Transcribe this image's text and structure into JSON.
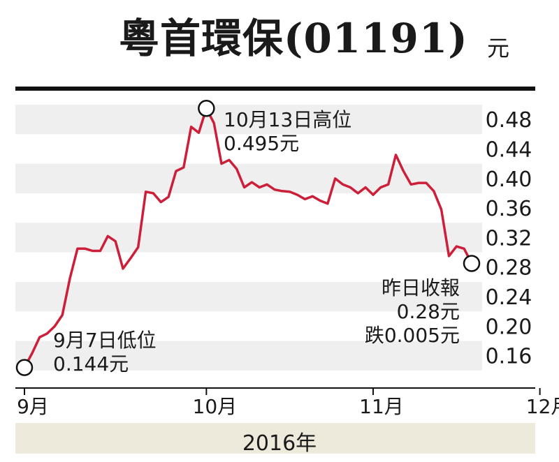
{
  "title": "粵首環保(01191)",
  "unit": "元",
  "year_label": "2016年",
  "colors": {
    "line": "#cc1f3a",
    "band": "#efefef",
    "axis": "#111111",
    "year_band": "#eeeadb"
  },
  "annotations": {
    "high": {
      "line1": "10月13日高位",
      "line2": "0.495元"
    },
    "low": {
      "line1": "9月7日低位",
      "line2": "0.144元"
    },
    "close": {
      "line1": "昨日收報",
      "line2": "0.28元",
      "line3": "跌0.005元"
    }
  },
  "chart_data": {
    "type": "line",
    "title": "粵首環保(01191)",
    "ylabel": "元",
    "xlabel": "2016年",
    "ylim": [
      0.12,
      0.5
    ],
    "yticks": [
      0.16,
      0.2,
      0.24,
      0.28,
      0.32,
      0.36,
      0.4,
      0.44,
      0.48
    ],
    "ytick_labels": [
      "0.16",
      "0.20",
      "0.24",
      "0.28",
      "0.32",
      "0.36",
      "0.40",
      "0.44",
      "0.48"
    ],
    "xticks": [
      {
        "label": "9月",
        "x": 0
      },
      {
        "label": "10月",
        "x": 24
      },
      {
        "label": "11月",
        "x": 46
      },
      {
        "label": "12月",
        "x": 68
      }
    ],
    "grid": "alternating horizontal bands",
    "series": [
      {
        "values": [
          [
            0,
            0.144
          ],
          [
            1,
            0.163
          ],
          [
            2,
            0.185
          ],
          [
            3,
            0.19
          ],
          [
            4,
            0.2
          ],
          [
            5,
            0.215
          ],
          [
            6,
            0.265
          ],
          [
            7,
            0.305
          ],
          [
            8,
            0.305
          ],
          [
            9,
            0.302
          ],
          [
            10,
            0.302
          ],
          [
            11,
            0.322
          ],
          [
            12,
            0.315
          ],
          [
            13,
            0.278
          ],
          [
            14,
            0.292
          ],
          [
            15,
            0.307
          ],
          [
            16,
            0.382
          ],
          [
            17,
            0.38
          ],
          [
            18,
            0.368
          ],
          [
            19,
            0.375
          ],
          [
            20,
            0.41
          ],
          [
            21,
            0.415
          ],
          [
            22,
            0.47
          ],
          [
            23,
            0.462
          ],
          [
            24,
            0.495
          ],
          [
            25,
            0.475
          ],
          [
            26,
            0.42
          ],
          [
            27,
            0.425
          ],
          [
            28,
            0.413
          ],
          [
            29,
            0.388
          ],
          [
            30,
            0.395
          ],
          [
            31,
            0.388
          ],
          [
            32,
            0.392
          ],
          [
            33,
            0.385
          ],
          [
            34,
            0.383
          ],
          [
            35,
            0.382
          ],
          [
            36,
            0.378
          ],
          [
            37,
            0.372
          ],
          [
            38,
            0.376
          ],
          [
            39,
            0.37
          ],
          [
            40,
            0.366
          ],
          [
            41,
            0.4
          ],
          [
            42,
            0.392
          ],
          [
            43,
            0.388
          ],
          [
            44,
            0.38
          ],
          [
            45,
            0.388
          ],
          [
            46,
            0.378
          ],
          [
            47,
            0.388
          ],
          [
            48,
            0.392
          ],
          [
            49,
            0.432
          ],
          [
            50,
            0.41
          ],
          [
            51,
            0.392
          ],
          [
            52,
            0.394
          ],
          [
            53,
            0.394
          ],
          [
            54,
            0.383
          ],
          [
            55,
            0.358
          ],
          [
            56,
            0.295
          ],
          [
            57,
            0.308
          ],
          [
            58,
            0.305
          ],
          [
            59,
            0.285
          ]
        ]
      }
    ]
  }
}
